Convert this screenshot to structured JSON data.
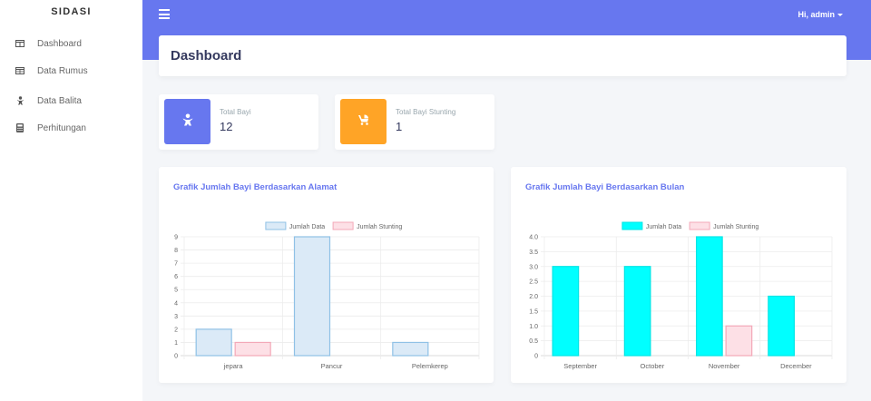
{
  "sidebar": {
    "brand": "SIDASI",
    "items": [
      {
        "label": "Dashboard",
        "icon": "table-columns-icon"
      },
      {
        "label": "Data Rumus",
        "icon": "table-icon"
      },
      {
        "label": "Data Balita",
        "icon": "baby-icon"
      },
      {
        "label": "Perhitungan",
        "icon": "calculator-icon"
      }
    ]
  },
  "topbar": {
    "user": "Hi, admin",
    "accent": "#6777ef"
  },
  "header": {
    "title": "Dashboard"
  },
  "stats": [
    {
      "label": "Total Bayi",
      "value": "12",
      "color": "#6777ef",
      "icon": "baby-icon"
    },
    {
      "label": "Total Bayi Stunting",
      "value": "1",
      "color": "#ffa426",
      "icon": "baby-carriage-icon"
    }
  ],
  "chart_data": [
    {
      "type": "bar",
      "title": "Grafik Jumlah Bayi Berdasarkan Alamat",
      "categories": [
        "jepara",
        "Pancur",
        "Pelemkerep"
      ],
      "series": [
        {
          "name": "Jumlah Data",
          "values": [
            2,
            9,
            1
          ],
          "fill": "#dbeaf7",
          "stroke": "#8fc1e6"
        },
        {
          "name": "Jumlah Stunting",
          "values": [
            1,
            0,
            0
          ],
          "fill": "#fde0e6",
          "stroke": "#f3a8b8"
        }
      ],
      "yticks": [
        "0",
        "1",
        "2",
        "3",
        "4",
        "5",
        "6",
        "7",
        "8",
        "9"
      ],
      "ylim": [
        0,
        9
      ],
      "legend": "top",
      "grid": true
    },
    {
      "type": "bar",
      "title": "Grafik Jumlah Bayi Berdasarkan Bulan",
      "categories": [
        "September",
        "October",
        "November",
        "December"
      ],
      "series": [
        {
          "name": "Jumlah Data",
          "values": [
            3,
            3,
            4,
            2
          ],
          "fill": "#00ffff",
          "stroke": "#00e5e5"
        },
        {
          "name": "Jumlah Stunting",
          "values": [
            0,
            0,
            1,
            0
          ],
          "fill": "#fde0e6",
          "stroke": "#f3a8b8"
        }
      ],
      "yticks": [
        "0",
        "0.5",
        "1.0",
        "1.5",
        "2.0",
        "2.5",
        "3.0",
        "3.5",
        "4.0"
      ],
      "ylim": [
        0,
        4
      ],
      "legend": "top",
      "grid": true
    }
  ]
}
